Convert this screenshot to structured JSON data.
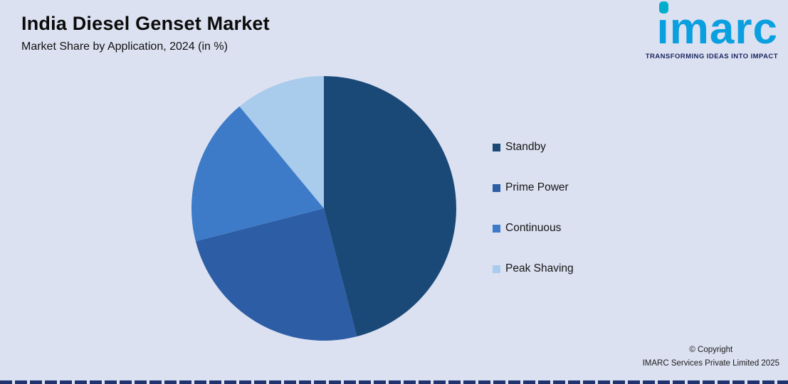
{
  "header": {
    "title": "India Diesel Genset Market",
    "subtitle": "Market Share by Application, 2024 (in %)"
  },
  "logo": {
    "word": "ımarc",
    "tagline": "TRANSFORMING IDEAS INTO IMPACT",
    "brand_color": "#0aa0e0",
    "dot_color": "#00aecb",
    "tagline_color": "#15235c"
  },
  "chart_data": {
    "type": "pie",
    "title": "India Diesel Genset Market",
    "subtitle": "Market Share by Application, 2024 (in %)",
    "categories": [
      "Standby",
      "Prime Power",
      "Continuous",
      "Peak Shaving"
    ],
    "values": [
      46,
      25,
      18,
      11
    ],
    "colors": [
      "#1b4977",
      "#2d5da4",
      "#3d7bc8",
      "#a9cbec"
    ],
    "start_angle_deg": 0,
    "direction": "clockwise",
    "legend_position": "right",
    "background_color": "#dce1f1"
  },
  "footer": {
    "line1": "© Copyright",
    "line2": "IMARC Services Private Limited 2025"
  }
}
